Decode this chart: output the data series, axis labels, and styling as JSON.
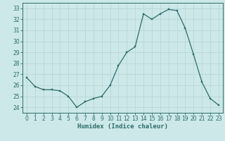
{
  "x": [
    0,
    1,
    2,
    3,
    4,
    5,
    6,
    7,
    8,
    9,
    10,
    11,
    12,
    13,
    14,
    15,
    16,
    17,
    18,
    19,
    20,
    21,
    22,
    23
  ],
  "y": [
    26.7,
    25.9,
    25.6,
    25.6,
    25.5,
    25.0,
    24.0,
    24.5,
    24.8,
    25.0,
    26.0,
    27.8,
    29.0,
    29.5,
    32.5,
    32.0,
    32.5,
    32.9,
    32.8,
    31.2,
    28.8,
    26.3,
    24.8,
    24.2
  ],
  "line_color": "#2e6b6b",
  "marker_color": "#2e6b6b",
  "bg_color": "#cce8e8",
  "grid_color": "#b8d8d8",
  "axis_color": "#2e6b6b",
  "tick_label_color": "#2e6b6b",
  "xlabel": "Humidex (Indice chaleur)",
  "ylabel_ticks": [
    24,
    25,
    26,
    27,
    28,
    29,
    30,
    31,
    32,
    33
  ],
  "xlim": [
    -0.5,
    23.5
  ],
  "ylim": [
    23.5,
    33.5
  ]
}
